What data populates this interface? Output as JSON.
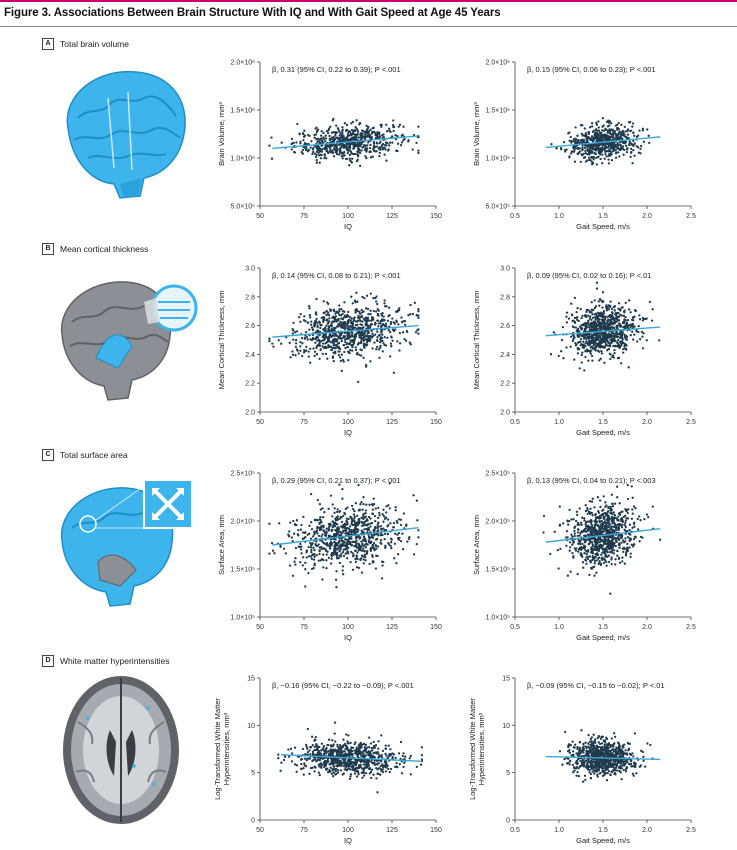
{
  "figure_title": "Figure 3. Associations Between Brain Structure With IQ and With Gait Speed at Age 45 Years",
  "sections": [
    {
      "letter": "A",
      "label": "Total brain volume"
    },
    {
      "letter": "B",
      "label": "Mean cortical thickness"
    },
    {
      "letter": "C",
      "label": "Total surface area"
    },
    {
      "letter": "D",
      "label": "White matter hyperintensities"
    }
  ],
  "colors": {
    "accent_bar": "#c8006e",
    "point": "#1f3a4d",
    "fit_line": "#3aa8d8",
    "brain_blue": "#3db4ec",
    "brain_gray": "#8c8f94"
  },
  "icons": [
    "brain-lateral-blue-icon",
    "brain-lateral-gray-icon",
    "brain-surface-blue-icon",
    "brain-axial-slice-icon"
  ],
  "chart_data": [
    {
      "id": "A-IQ",
      "type": "scatter",
      "stat": "β, 0.31 (95% CI, 0.22 to 0.39); P <.001",
      "xlabel": "IQ",
      "ylabel": [
        "Brain Volume, mm³"
      ],
      "xlim": [
        50,
        150
      ],
      "ylim": [
        500000,
        2000000
      ],
      "xticks": [
        "50",
        "75",
        "100",
        "125",
        "150"
      ],
      "yticks": [
        "5.0×10⁵",
        "1.0×10⁶",
        "1.5×10⁶",
        "2.0×10⁶"
      ],
      "ytick_values": [
        500000,
        1000000,
        1500000,
        2000000
      ],
      "fit": {
        "x": [
          57,
          140
        ],
        "y": [
          1100000,
          1230000
        ]
      },
      "x_center": 100,
      "x_sd": 15,
      "y_center": 1170000,
      "y_sd": 85000,
      "n": 620
    },
    {
      "id": "A-GS",
      "type": "scatter",
      "stat": "β, 0.15 (95% CI, 0.06 to 0.23); P <.001",
      "xlabel": "Gait Speed, m/s",
      "ylabel": [
        "Brain Volume, mm³"
      ],
      "xlim": [
        0.5,
        2.5
      ],
      "ylim": [
        500000,
        2000000
      ],
      "xticks": [
        "0.5",
        "1.0",
        "1.5",
        "2.0",
        "2.5"
      ],
      "yticks": [
        "5.0×10⁵",
        "1.0×10⁶",
        "1.5×10⁶",
        "2.0×10⁶"
      ],
      "ytick_values": [
        500000,
        1000000,
        1500000,
        2000000
      ],
      "fit": {
        "x": [
          0.85,
          2.15
        ],
        "y": [
          1110000,
          1220000
        ]
      },
      "x_center": 1.5,
      "x_sd": 0.19,
      "y_center": 1170000,
      "y_sd": 85000,
      "n": 620
    },
    {
      "id": "B-IQ",
      "type": "scatter",
      "stat": "β, 0.14 (95% CI, 0.08 to 0.21); P <.001",
      "xlabel": "IQ",
      "ylabel": [
        "Mean Cortical Thickness, mm"
      ],
      "xlim": [
        50,
        150
      ],
      "ylim": [
        2.0,
        3.0
      ],
      "xticks": [
        "50",
        "75",
        "100",
        "125",
        "150"
      ],
      "yticks": [
        "2.0",
        "2.2",
        "2.4",
        "2.6",
        "2.8",
        "3.0"
      ],
      "ytick_values": [
        2.0,
        2.2,
        2.4,
        2.6,
        2.8,
        3.0
      ],
      "fit": {
        "x": [
          57,
          140
        ],
        "y": [
          2.52,
          2.6
        ]
      },
      "x_center": 100,
      "x_sd": 15,
      "y_center": 2.56,
      "y_sd": 0.09,
      "n": 820
    },
    {
      "id": "B-GS",
      "type": "scatter",
      "stat": "β, 0.09 (95% CI, 0.02 to 0.16); P <.01",
      "xlabel": "Gait Speed, m/s",
      "ylabel": [
        "Mean Cortical Thickness, mm"
      ],
      "xlim": [
        0.5,
        2.5
      ],
      "ylim": [
        2.0,
        3.0
      ],
      "xticks": [
        "0.5",
        "1.0",
        "1.5",
        "2.0",
        "2.5"
      ],
      "yticks": [
        "2.0",
        "2.2",
        "2.4",
        "2.6",
        "2.8",
        "3.0"
      ],
      "ytick_values": [
        2.0,
        2.2,
        2.4,
        2.6,
        2.8,
        3.0
      ],
      "fit": {
        "x": [
          0.85,
          2.15
        ],
        "y": [
          2.53,
          2.59
        ]
      },
      "x_center": 1.5,
      "x_sd": 0.19,
      "y_center": 2.56,
      "y_sd": 0.09,
      "n": 820
    },
    {
      "id": "C-IQ",
      "type": "scatter",
      "stat": "β, 0.29 (95% CI, 0.21 to 0.37); P <.001",
      "xlabel": "IQ",
      "ylabel": [
        "Surface Area, mm"
      ],
      "xlim": [
        50,
        150
      ],
      "ylim": [
        100000,
        250000
      ],
      "xticks": [
        "50",
        "75",
        "100",
        "125",
        "150"
      ],
      "yticks": [
        "1.0×10⁵",
        "1.5×10⁵",
        "2.0×10⁵",
        "2.5×10⁵"
      ],
      "ytick_values": [
        100000,
        150000,
        200000,
        250000
      ],
      "fit": {
        "x": [
          57,
          140
        ],
        "y": [
          175000,
          193000
        ]
      },
      "x_center": 100,
      "x_sd": 15,
      "y_center": 185000,
      "y_sd": 16000,
      "n": 820
    },
    {
      "id": "C-GS",
      "type": "scatter",
      "stat": "β, 0.13 (95% CI, 0.04 to 0.21); P <.003",
      "xlabel": "Gait Speed, m/s",
      "ylabel": [
        "Surface Area, mm"
      ],
      "xlim": [
        0.5,
        2.5
      ],
      "ylim": [
        100000,
        250000
      ],
      "xticks": [
        "0.5",
        "1.0",
        "1.5",
        "2.0",
        "2.5"
      ],
      "yticks": [
        "1.0×10⁵",
        "1.5×10⁵",
        "2.0×10⁵",
        "2.5×10⁵"
      ],
      "ytick_values": [
        100000,
        150000,
        200000,
        250000
      ],
      "fit": {
        "x": [
          0.85,
          2.15
        ],
        "y": [
          178000,
          192000
        ]
      },
      "x_center": 1.5,
      "x_sd": 0.19,
      "y_center": 185000,
      "y_sd": 16000,
      "n": 820
    },
    {
      "id": "D-IQ",
      "type": "scatter",
      "stat": "β, −0.16 (95% CI, −0.22 to −0.09); P <.001",
      "xlabel": "IQ",
      "ylabel": [
        "Log-Transformed White Matter",
        "Hyperintensities, mm³"
      ],
      "xlim": [
        50,
        150
      ],
      "ylim": [
        0,
        15
      ],
      "xticks": [
        "50",
        "75",
        "100",
        "125",
        "150"
      ],
      "yticks": [
        "0",
        "5",
        "10",
        "15"
      ],
      "ytick_values": [
        0,
        5,
        10,
        15
      ],
      "fit": {
        "x": [
          62,
          142
        ],
        "y": [
          6.9,
          6.2
        ]
      },
      "x_center": 100,
      "x_sd": 15,
      "y_center": 6.6,
      "y_sd": 0.9,
      "n": 760
    },
    {
      "id": "D-GS",
      "type": "scatter",
      "stat": "β, −0.09 (95% CI, −0.15 to −0.02); P <.01",
      "xlabel": "Gait Speed, m/s",
      "ylabel": [
        "Log-Transformed White Matter",
        "Hyperintensities, mm³"
      ],
      "xlim": [
        0.5,
        2.5
      ],
      "ylim": [
        0,
        15
      ],
      "xticks": [
        "0.5",
        "1.0",
        "1.5",
        "2.0",
        "2.5"
      ],
      "yticks": [
        "0",
        "5",
        "10",
        "15"
      ],
      "ytick_values": [
        0,
        5,
        10,
        15
      ],
      "fit": {
        "x": [
          0.85,
          2.15
        ],
        "y": [
          6.7,
          6.4
        ]
      },
      "x_center": 1.5,
      "x_sd": 0.19,
      "y_center": 6.6,
      "y_sd": 0.9,
      "n": 760
    }
  ]
}
